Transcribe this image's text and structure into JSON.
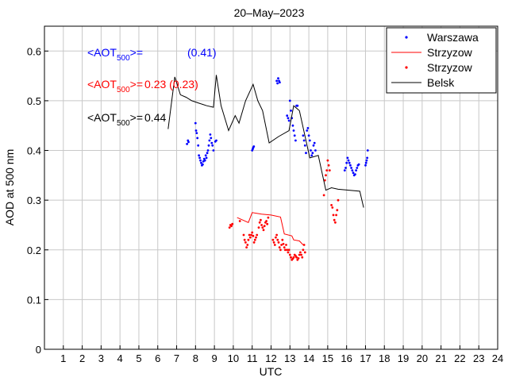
{
  "chart_data": {
    "type": "scatter",
    "title": "20–May–2023",
    "xlabel": "UTC",
    "ylabel": "AOD at 500 nm",
    "xlim": [
      0,
      24
    ],
    "ylim": [
      0,
      0.65
    ],
    "xticks": [
      1,
      2,
      3,
      4,
      5,
      6,
      7,
      8,
      9,
      10,
      11,
      12,
      13,
      14,
      15,
      16,
      17,
      18,
      19,
      20,
      21,
      22,
      23,
      24
    ],
    "yticks": [
      0,
      0.1,
      0.2,
      0.3,
      0.4,
      0.5,
      0.6
    ],
    "grid": true,
    "legend_position": "top-right",
    "colors": {
      "blue": "#0000ff",
      "red": "#ff0000",
      "black": "#000000"
    },
    "legend": [
      {
        "label": "Warszawa",
        "marker": "dot",
        "color": "#0000ff"
      },
      {
        "label": "Strzyzow",
        "marker": "line",
        "color": "#ff0000"
      },
      {
        "label": "Strzyzow",
        "marker": "dot",
        "color": "#ff0000"
      },
      {
        "label": "Belsk",
        "marker": "line",
        "color": "#000000"
      }
    ],
    "annotations": [
      {
        "prefix": "<AOT",
        "sub": "500",
        "suffix": ">=",
        "value": "(0.41)",
        "color": "#0000ff"
      },
      {
        "prefix": "<AOT",
        "sub": "500",
        "suffix": ">=",
        "value": "0.23 (0.23)",
        "color": "#ff0000"
      },
      {
        "prefix": "<AOT",
        "sub": "500",
        "suffix": ">=",
        "value": "0.44",
        "color": "#000000"
      }
    ],
    "series": [
      {
        "name": "Warszawa",
        "style": "dots",
        "color": "#0000ff",
        "points": [
          [
            7.55,
            0.413
          ],
          [
            7.6,
            0.42
          ],
          [
            7.63,
            0.417
          ],
          [
            8.0,
            0.455
          ],
          [
            8.03,
            0.44
          ],
          [
            8.06,
            0.435
          ],
          [
            8.1,
            0.425
          ],
          [
            8.14,
            0.41
          ],
          [
            8.18,
            0.39
          ],
          [
            8.22,
            0.385
          ],
          [
            8.26,
            0.38
          ],
          [
            8.3,
            0.375
          ],
          [
            8.34,
            0.37
          ],
          [
            8.38,
            0.372
          ],
          [
            8.42,
            0.378
          ],
          [
            8.46,
            0.383
          ],
          [
            8.5,
            0.38
          ],
          [
            8.54,
            0.39
          ],
          [
            8.58,
            0.385
          ],
          [
            8.62,
            0.395
          ],
          [
            8.66,
            0.4
          ],
          [
            8.7,
            0.41
          ],
          [
            8.74,
            0.42
          ],
          [
            8.78,
            0.432
          ],
          [
            8.82,
            0.425
          ],
          [
            8.86,
            0.415
          ],
          [
            8.9,
            0.41
          ],
          [
            8.95,
            0.4
          ],
          [
            9.05,
            0.418
          ],
          [
            9.1,
            0.42
          ],
          [
            11.0,
            0.4
          ],
          [
            11.03,
            0.403
          ],
          [
            11.06,
            0.406
          ],
          [
            11.09,
            0.408
          ],
          [
            12.3,
            0.54
          ],
          [
            12.34,
            0.535
          ],
          [
            12.38,
            0.545
          ],
          [
            12.42,
            0.54
          ],
          [
            12.46,
            0.537
          ],
          [
            12.85,
            0.47
          ],
          [
            12.9,
            0.465
          ],
          [
            12.95,
            0.46
          ],
          [
            13.0,
            0.5
          ],
          [
            13.05,
            0.48
          ],
          [
            13.1,
            0.465
          ],
          [
            13.15,
            0.45
          ],
          [
            13.2,
            0.44
          ],
          [
            13.25,
            0.43
          ],
          [
            13.3,
            0.42
          ],
          [
            13.35,
            0.49
          ],
          [
            13.4,
            0.49
          ],
          [
            13.7,
            0.43
          ],
          [
            13.75,
            0.42
          ],
          [
            13.8,
            0.41
          ],
          [
            13.85,
            0.395
          ],
          [
            13.9,
            0.44
          ],
          [
            13.95,
            0.445
          ],
          [
            14.0,
            0.43
          ],
          [
            14.05,
            0.42
          ],
          [
            14.1,
            0.4
          ],
          [
            14.15,
            0.39
          ],
          [
            14.2,
            0.395
          ],
          [
            14.25,
            0.41
          ],
          [
            14.3,
            0.415
          ],
          [
            14.35,
            0.4
          ],
          [
            15.9,
            0.36
          ],
          [
            15.95,
            0.365
          ],
          [
            16.0,
            0.375
          ],
          [
            16.05,
            0.385
          ],
          [
            16.1,
            0.38
          ],
          [
            16.15,
            0.375
          ],
          [
            16.2,
            0.37
          ],
          [
            16.25,
            0.365
          ],
          [
            16.3,
            0.36
          ],
          [
            16.35,
            0.355
          ],
          [
            16.4,
            0.35
          ],
          [
            16.45,
            0.352
          ],
          [
            16.5,
            0.36
          ],
          [
            16.55,
            0.365
          ],
          [
            16.6,
            0.37
          ],
          [
            16.65,
            0.372
          ],
          [
            17.0,
            0.37
          ],
          [
            17.03,
            0.375
          ],
          [
            17.06,
            0.38
          ],
          [
            17.09,
            0.385
          ],
          [
            17.12,
            0.4
          ]
        ]
      },
      {
        "name": "Strzyzow",
        "style": "line",
        "color": "#ff0000",
        "points": [
          [
            10.2,
            0.265
          ],
          [
            10.5,
            0.26
          ],
          [
            10.8,
            0.255
          ],
          [
            11.0,
            0.275
          ],
          [
            11.5,
            0.272
          ],
          [
            12.0,
            0.27
          ],
          [
            12.5,
            0.266
          ],
          [
            12.7,
            0.232
          ],
          [
            13.1,
            0.228
          ],
          [
            13.2,
            0.22
          ],
          [
            13.5,
            0.218
          ],
          [
            13.7,
            0.21
          ]
        ]
      },
      {
        "name": "Strzyzow",
        "style": "dots",
        "color": "#ff0000",
        "points": [
          [
            9.8,
            0.245
          ],
          [
            9.85,
            0.25
          ],
          [
            9.9,
            0.248
          ],
          [
            9.95,
            0.252
          ],
          [
            10.35,
            0.258
          ],
          [
            10.55,
            0.23
          ],
          [
            10.6,
            0.22
          ],
          [
            10.65,
            0.215
          ],
          [
            10.7,
            0.205
          ],
          [
            10.75,
            0.21
          ],
          [
            10.8,
            0.22
          ],
          [
            10.85,
            0.23
          ],
          [
            10.9,
            0.225
          ],
          [
            10.95,
            0.23
          ],
          [
            11.0,
            0.235
          ],
          [
            11.05,
            0.228
          ],
          [
            11.1,
            0.215
          ],
          [
            11.15,
            0.22
          ],
          [
            11.2,
            0.225
          ],
          [
            11.25,
            0.23
          ],
          [
            11.35,
            0.245
          ],
          [
            11.4,
            0.255
          ],
          [
            11.45,
            0.26
          ],
          [
            11.5,
            0.25
          ],
          [
            11.55,
            0.245
          ],
          [
            11.6,
            0.24
          ],
          [
            11.65,
            0.248
          ],
          [
            11.7,
            0.255
          ],
          [
            11.75,
            0.258
          ],
          [
            11.8,
            0.252
          ],
          [
            11.85,
            0.265
          ],
          [
            12.1,
            0.22
          ],
          [
            12.15,
            0.215
          ],
          [
            12.2,
            0.21
          ],
          [
            12.25,
            0.225
          ],
          [
            12.3,
            0.23
          ],
          [
            12.35,
            0.22
          ],
          [
            12.4,
            0.215
          ],
          [
            12.45,
            0.205
          ],
          [
            12.5,
            0.2
          ],
          [
            12.55,
            0.21
          ],
          [
            12.6,
            0.22
          ],
          [
            12.65,
            0.212
          ],
          [
            12.7,
            0.205
          ],
          [
            12.75,
            0.2
          ],
          [
            12.8,
            0.21
          ],
          [
            12.85,
            0.2
          ],
          [
            12.9,
            0.195
          ],
          [
            12.95,
            0.2
          ],
          [
            13.0,
            0.19
          ],
          [
            13.05,
            0.185
          ],
          [
            13.1,
            0.18
          ],
          [
            13.15,
            0.182
          ],
          [
            13.2,
            0.185
          ],
          [
            13.25,
            0.19
          ],
          [
            13.3,
            0.188
          ],
          [
            13.35,
            0.185
          ],
          [
            13.4,
            0.18
          ],
          [
            13.45,
            0.183
          ],
          [
            13.5,
            0.19
          ],
          [
            13.55,
            0.195
          ],
          [
            13.6,
            0.19
          ],
          [
            13.65,
            0.185
          ],
          [
            13.7,
            0.2
          ],
          [
            13.75,
            0.21
          ],
          [
            13.8,
            0.195
          ],
          [
            14.8,
            0.31
          ],
          [
            14.85,
            0.34
          ],
          [
            14.9,
            0.35
          ],
          [
            14.95,
            0.36
          ],
          [
            15.0,
            0.38
          ],
          [
            15.05,
            0.37
          ],
          [
            15.1,
            0.36
          ],
          [
            15.2,
            0.29
          ],
          [
            15.25,
            0.285
          ],
          [
            15.3,
            0.27
          ],
          [
            15.35,
            0.26
          ],
          [
            15.4,
            0.255
          ],
          [
            15.45,
            0.27
          ],
          [
            15.5,
            0.28
          ],
          [
            15.55,
            0.3
          ]
        ]
      },
      {
        "name": "Belsk",
        "style": "line",
        "color": "#000000",
        "points": [
          [
            6.55,
            0.443
          ],
          [
            6.9,
            0.548
          ],
          [
            7.2,
            0.512
          ],
          [
            7.5,
            0.507
          ],
          [
            7.8,
            0.5
          ],
          [
            8.2,
            0.495
          ],
          [
            8.6,
            0.49
          ],
          [
            8.95,
            0.487
          ],
          [
            9.1,
            0.552
          ],
          [
            9.35,
            0.49
          ],
          [
            9.75,
            0.44
          ],
          [
            10.1,
            0.47
          ],
          [
            10.3,
            0.455
          ],
          [
            10.65,
            0.5
          ],
          [
            11.05,
            0.533
          ],
          [
            11.3,
            0.5
          ],
          [
            11.55,
            0.48
          ],
          [
            11.9,
            0.415
          ],
          [
            12.4,
            0.428
          ],
          [
            12.95,
            0.44
          ],
          [
            13.2,
            0.49
          ],
          [
            13.5,
            0.48
          ],
          [
            14.05,
            0.385
          ],
          [
            14.5,
            0.39
          ],
          [
            14.9,
            0.32
          ],
          [
            15.2,
            0.325
          ],
          [
            15.55,
            0.322
          ],
          [
            16.7,
            0.318
          ],
          [
            16.9,
            0.285
          ]
        ]
      }
    ]
  }
}
